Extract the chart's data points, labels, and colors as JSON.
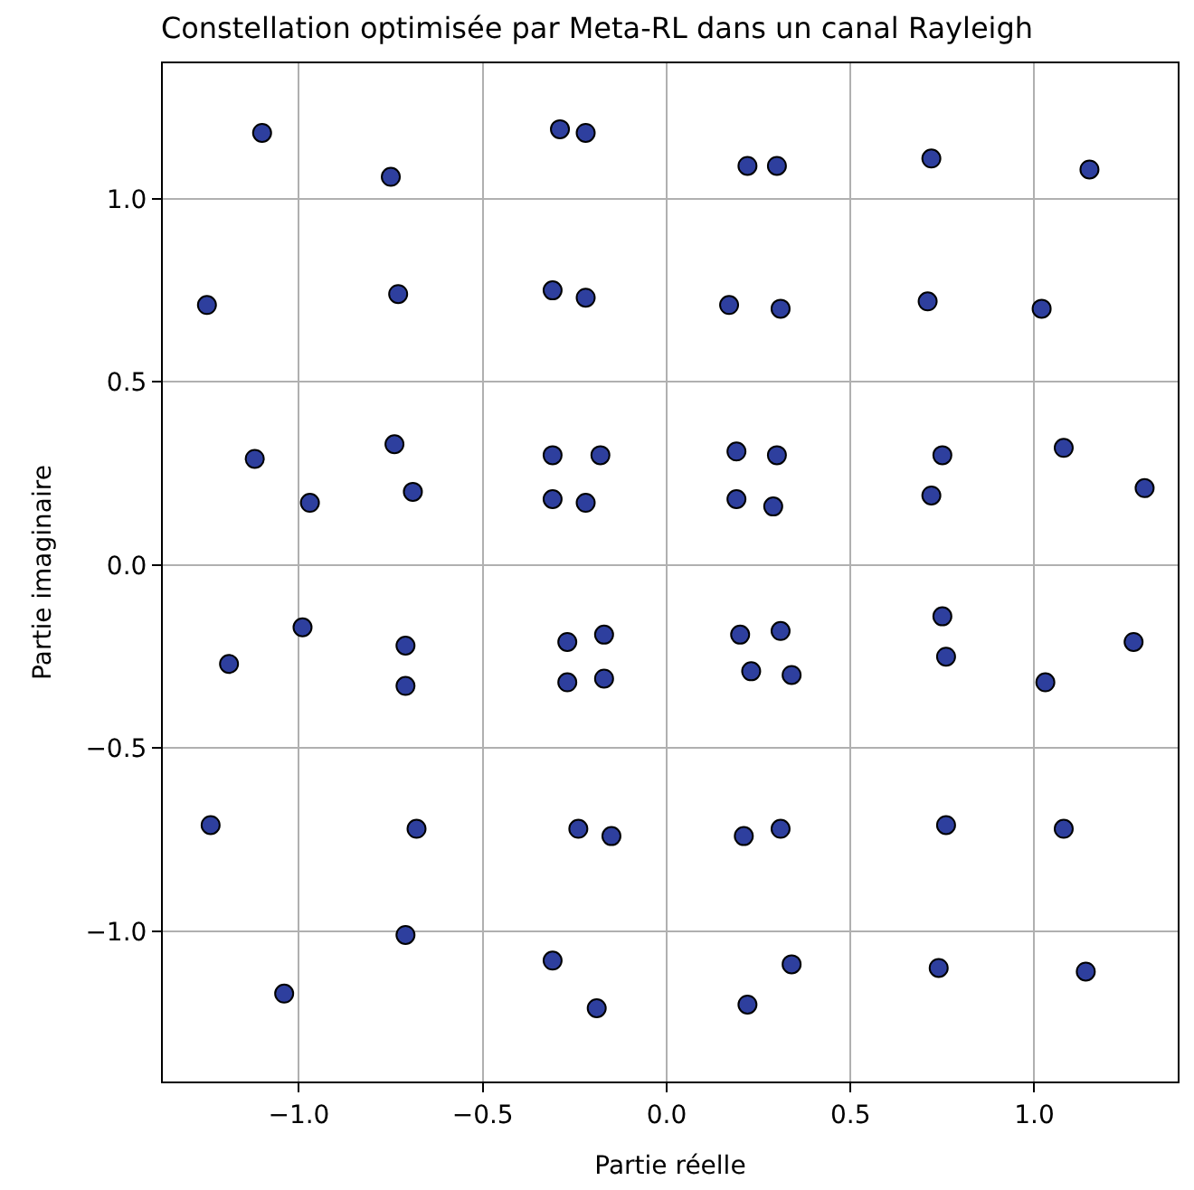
{
  "chart_data": {
    "type": "scatter",
    "title": "Constellation optimisée par Meta-RL dans un canal Rayleigh",
    "xlabel": "Partie réelle",
    "ylabel": "Partie imaginaire",
    "x": [
      -1.1,
      -0.75,
      -0.29,
      -0.22,
      0.22,
      0.3,
      0.72,
      1.15,
      -1.25,
      -0.73,
      -0.31,
      -0.22,
      0.17,
      0.31,
      0.71,
      1.02,
      -1.12,
      -0.97,
      -0.74,
      -0.69,
      -0.31,
      -0.18,
      -0.31,
      -0.22,
      0.19,
      0.3,
      0.19,
      0.29,
      0.75,
      0.72,
      1.08,
      1.3,
      -0.99,
      -1.19,
      -0.71,
      -0.71,
      -0.27,
      -0.17,
      -0.27,
      -0.17,
      0.2,
      0.31,
      0.23,
      0.34,
      0.75,
      0.76,
      1.03,
      1.27,
      -1.24,
      -0.68,
      -0.24,
      -0.15,
      0.21,
      0.31,
      0.76,
      1.08,
      -0.71,
      -1.04,
      -0.31,
      -0.19,
      0.22,
      0.34,
      0.74,
      1.14
    ],
    "series": [
      {
        "color": "#2e3f9e",
        "values": [
          1.18,
          1.06,
          1.19,
          1.18,
          1.09,
          1.09,
          1.11,
          1.08,
          0.71,
          0.74,
          0.75,
          0.73,
          0.71,
          0.7,
          0.72,
          0.7,
          0.29,
          0.17,
          0.33,
          0.2,
          0.3,
          0.3,
          0.18,
          0.17,
          0.31,
          0.3,
          0.18,
          0.16,
          0.3,
          0.19,
          0.32,
          0.21,
          -0.17,
          -0.27,
          -0.22,
          -0.33,
          -0.21,
          -0.19,
          -0.32,
          -0.31,
          -0.19,
          -0.18,
          -0.29,
          -0.3,
          -0.14,
          -0.25,
          -0.32,
          -0.21,
          -0.71,
          -0.72,
          -0.72,
          -0.74,
          -0.74,
          -0.72,
          -0.71,
          -0.72,
          -1.01,
          -1.17,
          -1.08,
          -1.21,
          -1.2,
          -1.09,
          -1.1,
          -1.11
        ]
      }
    ],
    "xlim": [
      -1.37,
      1.39
    ],
    "ylim": [
      -1.41,
      1.37
    ],
    "xticks": [
      {
        "value": -1.0,
        "label": "−1.0"
      },
      {
        "value": -0.5,
        "label": "−0.5"
      },
      {
        "value": 0.0,
        "label": "0.0"
      },
      {
        "value": 0.5,
        "label": "0.5"
      },
      {
        "value": 1.0,
        "label": "1.0"
      }
    ],
    "yticks": [
      {
        "value": -1.0,
        "label": "−1.0"
      },
      {
        "value": -0.5,
        "label": "−0.5"
      },
      {
        "value": 0.0,
        "label": "0.0"
      },
      {
        "value": 0.5,
        "label": "0.5"
      },
      {
        "value": 1.0,
        "label": "1.0"
      }
    ],
    "grid": true,
    "marker": "circle"
  }
}
